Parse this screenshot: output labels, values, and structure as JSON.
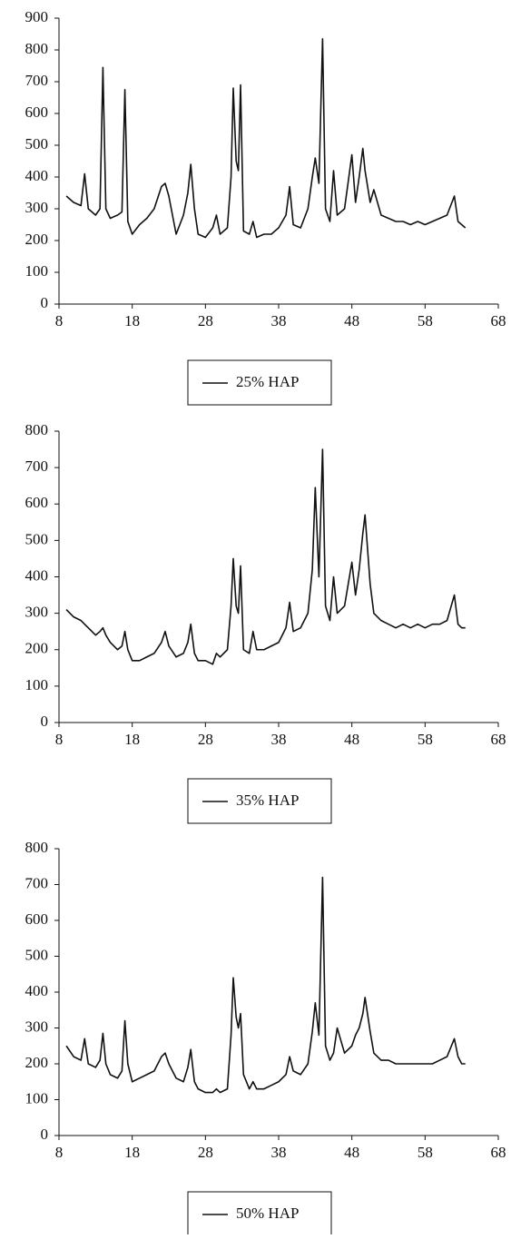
{
  "chart_data": [
    {
      "type": "line",
      "legend": "bottom",
      "xlim": [
        8,
        68
      ],
      "xticks": [
        8,
        18,
        28,
        38,
        48,
        58,
        68
      ],
      "ylim": [
        0,
        900
      ],
      "yticks": [
        0,
        100,
        200,
        300,
        400,
        500,
        600,
        700,
        800,
        900
      ],
      "x": [
        9,
        10,
        11,
        11.5,
        12,
        13,
        13.6,
        14,
        14.4,
        15,
        16,
        16.6,
        17,
        17.4,
        18,
        19,
        20,
        21,
        22,
        22.5,
        23,
        24,
        25,
        25.6,
        26,
        26.5,
        27,
        28,
        29,
        29.5,
        30,
        31,
        31.5,
        31.8,
        32.2,
        32.5,
        32.8,
        33.2,
        34,
        34.5,
        35,
        36,
        37,
        38,
        39,
        39.5,
        40,
        41,
        42,
        42.6,
        43,
        43.5,
        44,
        44.4,
        45,
        45.5,
        46,
        47,
        48,
        48.5,
        49,
        49.5,
        49.8,
        50.5,
        51,
        52,
        53,
        54,
        55,
        56,
        57,
        58,
        59,
        60,
        61,
        62,
        62.5,
        63,
        63.5
      ],
      "series": [
        {
          "name": "25% HAP",
          "color": "#111111",
          "values": [
            340,
            320,
            310,
            410,
            300,
            280,
            300,
            745,
            300,
            270,
            280,
            290,
            675,
            260,
            220,
            250,
            270,
            300,
            370,
            380,
            340,
            220,
            280,
            350,
            440,
            300,
            220,
            210,
            240,
            280,
            220,
            240,
            400,
            680,
            450,
            420,
            690,
            230,
            220,
            260,
            210,
            220,
            220,
            240,
            280,
            370,
            250,
            240,
            300,
            400,
            460,
            380,
            835,
            300,
            260,
            420,
            280,
            300,
            470,
            320,
            400,
            490,
            420,
            320,
            360,
            280,
            270,
            260,
            260,
            250,
            260,
            250,
            260,
            270,
            280,
            340,
            260,
            250,
            240
          ]
        }
      ]
    },
    {
      "type": "line",
      "legend": "bottom",
      "xlim": [
        8,
        68
      ],
      "xticks": [
        8,
        18,
        28,
        38,
        48,
        58,
        68
      ],
      "ylim": [
        0,
        800
      ],
      "yticks": [
        0,
        100,
        200,
        300,
        400,
        500,
        600,
        700,
        800
      ],
      "x": [
        9,
        10,
        11,
        11.5,
        12,
        13,
        13.6,
        14,
        14.4,
        15,
        16,
        16.6,
        17,
        17.4,
        18,
        19,
        20,
        21,
        22,
        22.5,
        23,
        24,
        25,
        25.6,
        26,
        26.5,
        27,
        28,
        29,
        29.5,
        30,
        31,
        31.5,
        31.8,
        32.2,
        32.5,
        32.8,
        33.2,
        34,
        34.5,
        35,
        36,
        37,
        38,
        39,
        39.5,
        40,
        41,
        42,
        42.6,
        43,
        43.5,
        44,
        44.4,
        45,
        45.5,
        46,
        47,
        48,
        48.5,
        49,
        49.5,
        49.8,
        50.5,
        51,
        52,
        53,
        54,
        55,
        56,
        57,
        58,
        59,
        60,
        61,
        62,
        62.5,
        63,
        63.5
      ],
      "series": [
        {
          "name": "35% HAP",
          "color": "#111111",
          "values": [
            310,
            290,
            280,
            270,
            260,
            240,
            250,
            260,
            240,
            220,
            200,
            210,
            250,
            200,
            170,
            170,
            180,
            190,
            220,
            250,
            210,
            180,
            190,
            220,
            270,
            190,
            170,
            170,
            160,
            190,
            180,
            200,
            320,
            450,
            320,
            300,
            430,
            200,
            190,
            250,
            200,
            200,
            210,
            220,
            260,
            330,
            250,
            260,
            300,
            420,
            645,
            400,
            750,
            320,
            280,
            400,
            300,
            320,
            440,
            350,
            420,
            520,
            570,
            380,
            300,
            280,
            270,
            260,
            270,
            260,
            270,
            260,
            270,
            270,
            280,
            350,
            270,
            260,
            260
          ]
        }
      ]
    },
    {
      "type": "line",
      "legend": "bottom",
      "xlim": [
        8,
        68
      ],
      "xticks": [
        8,
        18,
        28,
        38,
        48,
        58,
        68
      ],
      "ylim": [
        0,
        800
      ],
      "yticks": [
        0,
        100,
        200,
        300,
        400,
        500,
        600,
        700,
        800
      ],
      "x": [
        9,
        10,
        11,
        11.5,
        12,
        13,
        13.6,
        14,
        14.4,
        15,
        16,
        16.6,
        17,
        17.4,
        18,
        19,
        20,
        21,
        22,
        22.5,
        23,
        24,
        25,
        25.6,
        26,
        26.5,
        27,
        28,
        29,
        29.5,
        30,
        31,
        31.5,
        31.8,
        32.2,
        32.5,
        32.8,
        33.2,
        34,
        34.5,
        35,
        36,
        37,
        38,
        39,
        39.5,
        40,
        41,
        42,
        42.6,
        43,
        43.5,
        44,
        44.4,
        45,
        45.5,
        46,
        47,
        48,
        48.5,
        49,
        49.5,
        49.8,
        50.5,
        51,
        52,
        53,
        54,
        55,
        56,
        57,
        58,
        59,
        60,
        61,
        62,
        62.5,
        63,
        63.5
      ],
      "series": [
        {
          "name": "50% HAP",
          "color": "#111111",
          "values": [
            250,
            220,
            210,
            270,
            200,
            190,
            210,
            285,
            200,
            170,
            160,
            180,
            320,
            200,
            150,
            160,
            170,
            180,
            220,
            230,
            200,
            160,
            150,
            190,
            240,
            150,
            130,
            120,
            120,
            130,
            120,
            130,
            280,
            440,
            330,
            300,
            340,
            170,
            130,
            150,
            130,
            130,
            140,
            150,
            170,
            220,
            180,
            170,
            200,
            290,
            370,
            280,
            720,
            250,
            210,
            230,
            300,
            230,
            250,
            280,
            300,
            340,
            385,
            290,
            230,
            210,
            210,
            200,
            200,
            200,
            200,
            200,
            200,
            210,
            220,
            270,
            220,
            200,
            200
          ]
        }
      ]
    }
  ]
}
